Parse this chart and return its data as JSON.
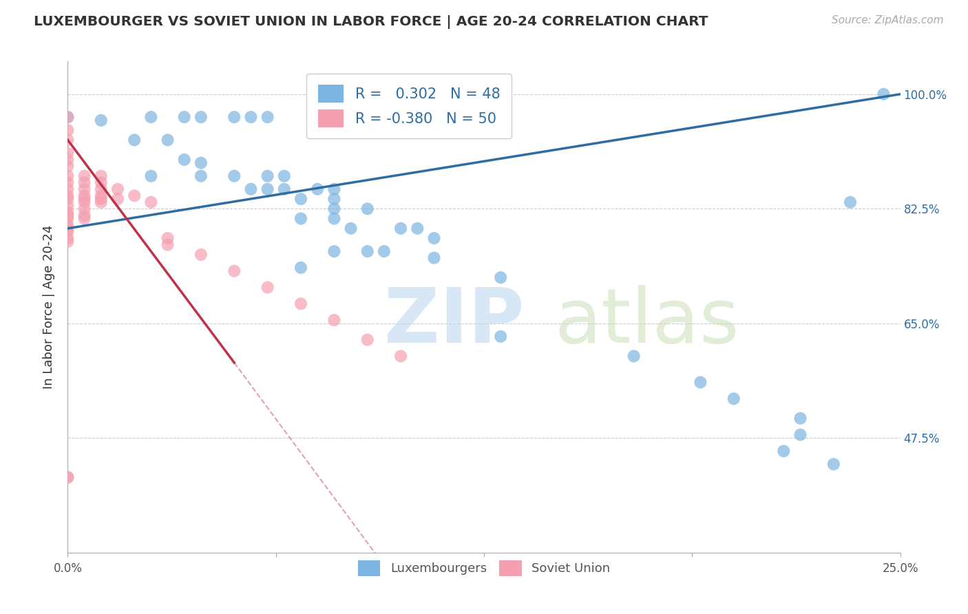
{
  "title": "LUXEMBOURGER VS SOVIET UNION IN LABOR FORCE | AGE 20-24 CORRELATION CHART",
  "source": "Source: ZipAtlas.com",
  "ylabel": "In Labor Force | Age 20-24",
  "xlim": [
    0.0,
    0.25
  ],
  "ylim": [
    0.3,
    1.05
  ],
  "right_y_ticks": [
    1.0,
    0.825,
    0.65,
    0.475
  ],
  "right_y_labels": [
    "100.0%",
    "82.5%",
    "65.0%",
    "47.5%"
  ],
  "grid_color": "#cccccc",
  "background_color": "#ffffff",
  "blue_R": 0.302,
  "blue_N": 48,
  "pink_R": -0.38,
  "pink_N": 50,
  "blue_color": "#7EB4E2",
  "pink_color": "#F4A0B0",
  "blue_line_color": "#2E6DA4",
  "pink_line_color": "#C0314A",
  "blue_line": [
    [
      0.0,
      0.795
    ],
    [
      0.25,
      1.0
    ]
  ],
  "pink_line_solid": [
    [
      0.0,
      0.93
    ],
    [
      0.05,
      0.59
    ]
  ],
  "pink_line_dash": [
    [
      0.05,
      0.59
    ],
    [
      0.13,
      0.04
    ]
  ],
  "blue_scatter": [
    [
      0.0,
      0.965
    ],
    [
      0.01,
      0.96
    ],
    [
      0.025,
      0.965
    ],
    [
      0.035,
      0.965
    ],
    [
      0.04,
      0.965
    ],
    [
      0.05,
      0.965
    ],
    [
      0.055,
      0.965
    ],
    [
      0.06,
      0.965
    ],
    [
      0.02,
      0.93
    ],
    [
      0.03,
      0.93
    ],
    [
      0.035,
      0.9
    ],
    [
      0.04,
      0.895
    ],
    [
      0.025,
      0.875
    ],
    [
      0.04,
      0.875
    ],
    [
      0.05,
      0.875
    ],
    [
      0.06,
      0.875
    ],
    [
      0.065,
      0.875
    ],
    [
      0.055,
      0.855
    ],
    [
      0.06,
      0.855
    ],
    [
      0.065,
      0.855
    ],
    [
      0.075,
      0.855
    ],
    [
      0.08,
      0.855
    ],
    [
      0.07,
      0.84
    ],
    [
      0.08,
      0.84
    ],
    [
      0.08,
      0.825
    ],
    [
      0.09,
      0.825
    ],
    [
      0.07,
      0.81
    ],
    [
      0.08,
      0.81
    ],
    [
      0.085,
      0.795
    ],
    [
      0.1,
      0.795
    ],
    [
      0.105,
      0.795
    ],
    [
      0.11,
      0.78
    ],
    [
      0.08,
      0.76
    ],
    [
      0.09,
      0.76
    ],
    [
      0.095,
      0.76
    ],
    [
      0.11,
      0.75
    ],
    [
      0.07,
      0.735
    ],
    [
      0.13,
      0.72
    ],
    [
      0.13,
      0.63
    ],
    [
      0.17,
      0.6
    ],
    [
      0.19,
      0.56
    ],
    [
      0.2,
      0.535
    ],
    [
      0.22,
      0.505
    ],
    [
      0.22,
      0.48
    ],
    [
      0.215,
      0.455
    ],
    [
      0.23,
      0.435
    ],
    [
      0.235,
      0.835
    ],
    [
      0.245,
      1.0
    ]
  ],
  "pink_scatter": [
    [
      0.0,
      0.965
    ],
    [
      0.0,
      0.945
    ],
    [
      0.0,
      0.93
    ],
    [
      0.0,
      0.91
    ],
    [
      0.0,
      0.9
    ],
    [
      0.0,
      0.89
    ],
    [
      0.0,
      0.875
    ],
    [
      0.0,
      0.865
    ],
    [
      0.0,
      0.855
    ],
    [
      0.0,
      0.845
    ],
    [
      0.0,
      0.84
    ],
    [
      0.0,
      0.83
    ],
    [
      0.0,
      0.82
    ],
    [
      0.0,
      0.815
    ],
    [
      0.0,
      0.81
    ],
    [
      0.0,
      0.8
    ],
    [
      0.0,
      0.795
    ],
    [
      0.0,
      0.79
    ],
    [
      0.0,
      0.78
    ],
    [
      0.0,
      0.775
    ],
    [
      0.005,
      0.875
    ],
    [
      0.005,
      0.865
    ],
    [
      0.005,
      0.855
    ],
    [
      0.005,
      0.845
    ],
    [
      0.005,
      0.84
    ],
    [
      0.005,
      0.835
    ],
    [
      0.005,
      0.825
    ],
    [
      0.005,
      0.815
    ],
    [
      0.005,
      0.81
    ],
    [
      0.01,
      0.875
    ],
    [
      0.01,
      0.865
    ],
    [
      0.01,
      0.855
    ],
    [
      0.01,
      0.845
    ],
    [
      0.01,
      0.84
    ],
    [
      0.01,
      0.835
    ],
    [
      0.015,
      0.855
    ],
    [
      0.015,
      0.84
    ],
    [
      0.02,
      0.845
    ],
    [
      0.025,
      0.835
    ],
    [
      0.03,
      0.78
    ],
    [
      0.03,
      0.77
    ],
    [
      0.04,
      0.755
    ],
    [
      0.05,
      0.73
    ],
    [
      0.06,
      0.705
    ],
    [
      0.07,
      0.68
    ],
    [
      0.08,
      0.655
    ],
    [
      0.09,
      0.625
    ],
    [
      0.1,
      0.6
    ],
    [
      0.0,
      0.415
    ],
    [
      0.0,
      0.415
    ]
  ]
}
